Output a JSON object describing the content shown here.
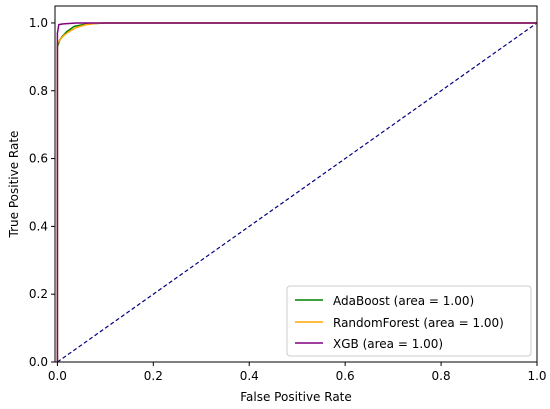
{
  "chart_data": {
    "type": "line",
    "title": "",
    "xlabel": "False Positive Rate",
    "ylabel": "True Positive Rate",
    "xlim": [
      -0.005,
      1.0
    ],
    "ylim": [
      0.0,
      1.05
    ],
    "xticks": [
      0.0,
      0.2,
      0.4,
      0.6,
      0.8,
      1.0
    ],
    "xtick_labels": [
      "0.0",
      "0.2",
      "0.4",
      "0.6",
      "0.8",
      "1.0"
    ],
    "yticks": [
      0.0,
      0.2,
      0.4,
      0.6,
      0.8,
      1.0
    ],
    "ytick_labels": [
      "0.0",
      "0.2",
      "0.4",
      "0.6",
      "0.8",
      "1.0"
    ],
    "grid": false,
    "legend_position": "lower-right",
    "series": [
      {
        "name": "AdaBoost (area = 1.00)",
        "color": "#008000",
        "points": [
          [
            0.0,
            0.0
          ],
          [
            0.0,
            0.93
          ],
          [
            0.005,
            0.95
          ],
          [
            0.01,
            0.96
          ],
          [
            0.02,
            0.975
          ],
          [
            0.035,
            0.99
          ],
          [
            0.06,
            0.997
          ],
          [
            0.1,
            1.0
          ],
          [
            1.0,
            1.0
          ]
        ]
      },
      {
        "name": "RandomForest (area = 1.00)",
        "color": "#FFA500",
        "points": [
          [
            0.0,
            0.0
          ],
          [
            0.0,
            0.94
          ],
          [
            0.008,
            0.955
          ],
          [
            0.015,
            0.965
          ],
          [
            0.025,
            0.975
          ],
          [
            0.04,
            0.987
          ],
          [
            0.06,
            0.995
          ],
          [
            0.09,
            1.0
          ],
          [
            1.0,
            1.0
          ]
        ]
      },
      {
        "name": "XGB (area = 1.00)",
        "color": "#800080",
        "points": [
          [
            0.0,
            0.0
          ],
          [
            0.0,
            0.97
          ],
          [
            0.003,
            0.995
          ],
          [
            0.01,
            0.997
          ],
          [
            0.02,
            0.998
          ],
          [
            0.04,
            1.0
          ],
          [
            1.0,
            1.0
          ]
        ]
      }
    ],
    "reference_line": {
      "color": "#000080",
      "style": "dashed",
      "points": [
        [
          0.0,
          0.0
        ],
        [
          1.0,
          1.0
        ]
      ]
    }
  }
}
